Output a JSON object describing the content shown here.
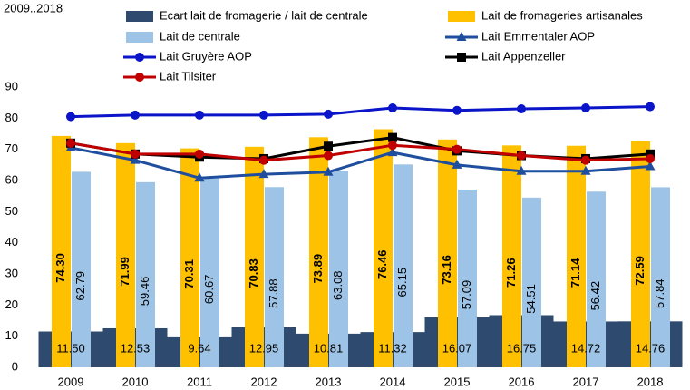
{
  "chart_data": {
    "type": "bar",
    "subtitle": "2009..2018",
    "categories": [
      "2009",
      "2010",
      "2011",
      "2012",
      "2013",
      "2014",
      "2015",
      "2016",
      "2017",
      "2018"
    ],
    "ylim": [
      0,
      90
    ],
    "yticks": [
      0,
      10,
      20,
      30,
      40,
      50,
      60,
      70,
      80,
      90
    ],
    "series": [
      {
        "name": "Ecart lait de fromagerie / lait de centrale",
        "type": "bar",
        "color": "#2e4a6f",
        "values": [
          11.5,
          12.53,
          9.64,
          12.95,
          10.81,
          11.32,
          16.07,
          16.75,
          14.72,
          14.76
        ],
        "value_labels": [
          "11.50",
          "12.53",
          "9.64",
          "12.95",
          "10.81",
          "11.32",
          "16.07",
          "16.75",
          "14.72",
          "14.76"
        ]
      },
      {
        "name": "Lait de fromageries artisanales",
        "type": "bar",
        "color": "#ffc000",
        "values": [
          74.3,
          71.99,
          70.31,
          70.83,
          73.89,
          76.46,
          73.16,
          71.26,
          71.14,
          72.59
        ],
        "value_labels": [
          "74.30",
          "71.99",
          "70.31",
          "70.83",
          "73.89",
          "76.46",
          "73.16",
          "71.26",
          "71.14",
          "72.59"
        ]
      },
      {
        "name": "Lait de centrale",
        "type": "bar",
        "color": "#9dc3e6",
        "values": [
          62.79,
          59.46,
          60.67,
          57.88,
          63.08,
          65.15,
          57.09,
          54.51,
          56.42,
          57.84
        ],
        "value_labels": [
          "62.79",
          "59.46",
          "60.67",
          "57.88",
          "63.08",
          "65.15",
          "57.09",
          "54.51",
          "56.42",
          "57.84"
        ]
      },
      {
        "name": "Lait Emmentaler AOP",
        "type": "line",
        "marker": "triangle",
        "color": "#1f4e9f",
        "values": [
          70.5,
          66.5,
          60.8,
          62,
          62.7,
          69,
          65,
          63,
          63,
          64.5
        ]
      },
      {
        "name": "Lait Gruyère AOP",
        "type": "line",
        "marker": "circle",
        "color": "#0a14c8",
        "values": [
          80.5,
          81,
          81,
          81,
          81.3,
          83.3,
          82.5,
          83,
          83.3,
          83.7
        ]
      },
      {
        "name": "Lait Appenzeller",
        "type": "line",
        "marker": "square",
        "color": "#000000",
        "values": [
          72,
          68.5,
          67.5,
          67,
          71,
          73.8,
          69.5,
          68,
          67,
          68.5
        ]
      },
      {
        "name": "Lait Tilsiter",
        "type": "line",
        "marker": "circle",
        "color": "#c00000",
        "values": [
          72,
          68.5,
          68.5,
          66.5,
          68,
          71.3,
          70,
          68,
          66.5,
          67
        ]
      }
    ]
  }
}
